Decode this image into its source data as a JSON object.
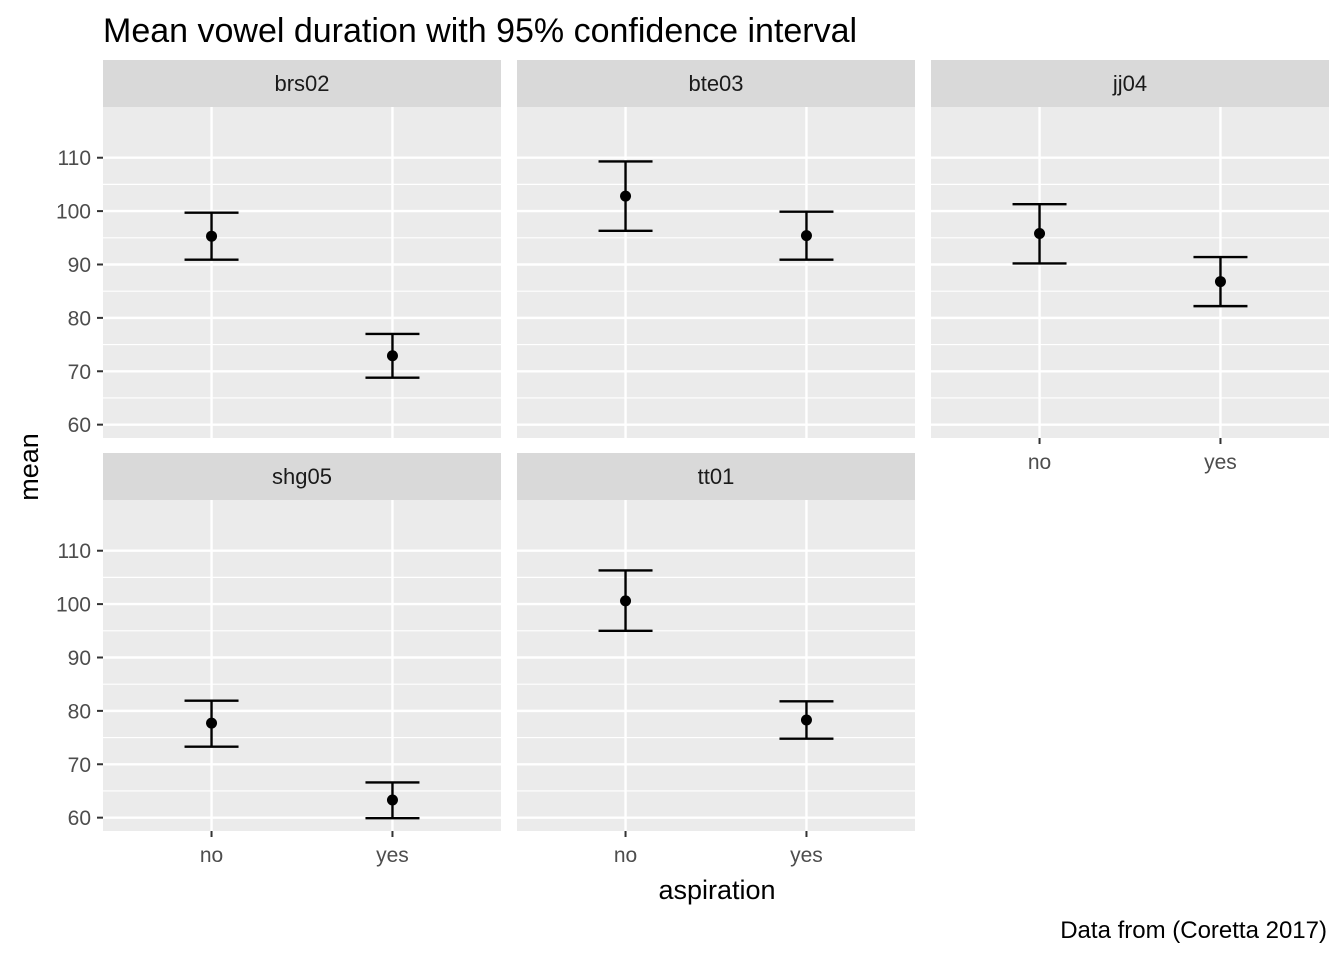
{
  "chart_data": {
    "type": "errorbar",
    "title": "Mean vowel duration with 95% confidence interval",
    "caption": "Data from (Coretta 2017)",
    "xlabel": "aspiration",
    "ylabel": "mean",
    "categories": [
      "no",
      "yes"
    ],
    "ylim": [
      57.5,
      119.5
    ],
    "yticks": [
      60,
      70,
      80,
      90,
      100,
      110
    ],
    "grid": true,
    "panel_background": "#ebebeb",
    "strip_background": "#d9d9d9",
    "point_color": "#000000",
    "facets": [
      {
        "name": "brs02",
        "points": [
          {
            "x": "no",
            "mean": 95.3,
            "lower": 90.9,
            "upper": 99.7
          },
          {
            "x": "yes",
            "mean": 72.9,
            "lower": 68.8,
            "upper": 77.0
          }
        ]
      },
      {
        "name": "bte03",
        "points": [
          {
            "x": "no",
            "mean": 102.8,
            "lower": 96.3,
            "upper": 109.3
          },
          {
            "x": "yes",
            "mean": 95.4,
            "lower": 90.9,
            "upper": 99.9
          }
        ]
      },
      {
        "name": "jj04",
        "points": [
          {
            "x": "no",
            "mean": 95.8,
            "lower": 90.2,
            "upper": 101.3
          },
          {
            "x": "yes",
            "mean": 86.8,
            "lower": 82.2,
            "upper": 91.4
          }
        ]
      },
      {
        "name": "shg05",
        "points": [
          {
            "x": "no",
            "mean": 77.7,
            "lower": 73.3,
            "upper": 81.9
          },
          {
            "x": "yes",
            "mean": 63.3,
            "lower": 59.9,
            "upper": 66.6
          }
        ]
      },
      {
        "name": "tt01",
        "points": [
          {
            "x": "no",
            "mean": 100.6,
            "lower": 95.0,
            "upper": 106.3
          },
          {
            "x": "yes",
            "mean": 78.3,
            "lower": 74.8,
            "upper": 81.8
          }
        ]
      }
    ]
  }
}
